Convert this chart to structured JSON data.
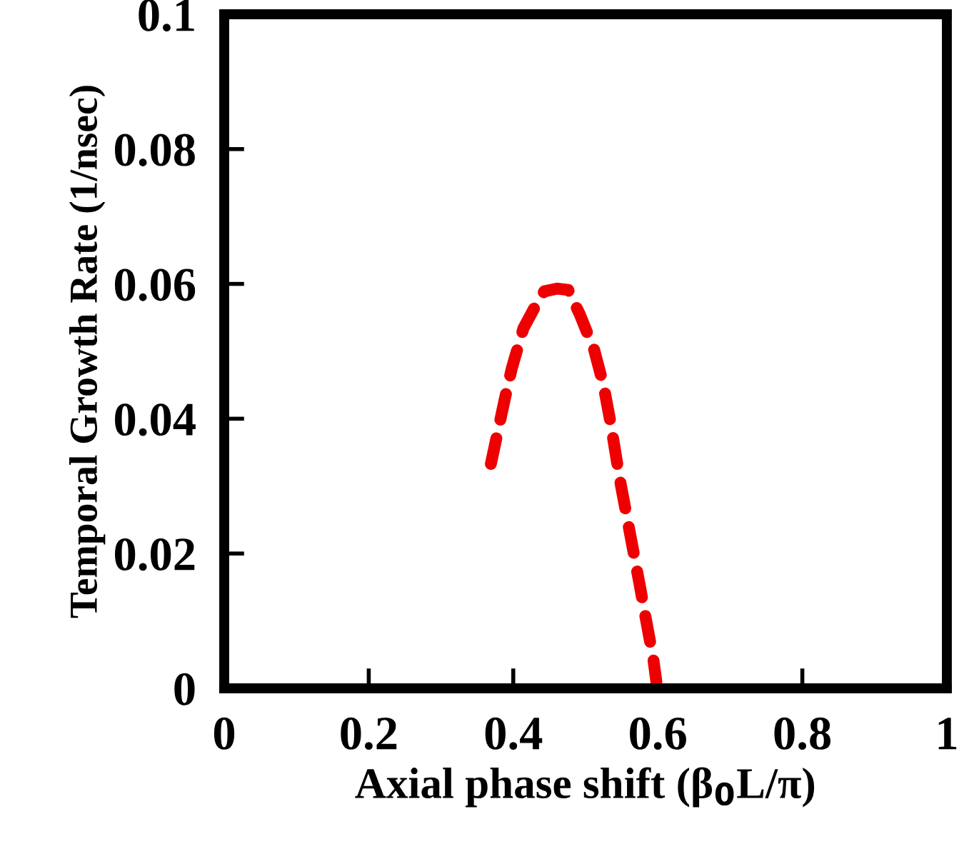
{
  "chart_data": {
    "type": "line",
    "xlabel": "Axial phase shift (β$_{0}$L/π)",
    "ylabel": "Temporal Growth Rate (1/nsec)",
    "series": [
      {
        "color": "#ee0000",
        "line_style": "dashed",
        "x": [
          0.369,
          0.388,
          0.398,
          0.414,
          0.433,
          0.443,
          0.461,
          0.476,
          0.492,
          0.512,
          0.525,
          0.535,
          0.543,
          0.549,
          0.565,
          0.575,
          0.584,
          0.594,
          0.598
        ],
        "values": [
          0.0333,
          0.0428,
          0.0475,
          0.0534,
          0.0572,
          0.0589,
          0.0593,
          0.0591,
          0.0555,
          0.0502,
          0.0449,
          0.0392,
          0.0339,
          0.0301,
          0.021,
          0.0153,
          0.01,
          0.0042,
          0.001
        ]
      }
    ],
    "xlim": [
      0,
      1
    ],
    "ylim": [
      0,
      0.1
    ],
    "xticks": [
      0,
      0.2,
      0.4,
      0.6,
      0.8,
      1
    ],
    "yticks": [
      0,
      0.02,
      0.04,
      0.06,
      0.08,
      0.1
    ],
    "grid": false,
    "legend": false
  }
}
